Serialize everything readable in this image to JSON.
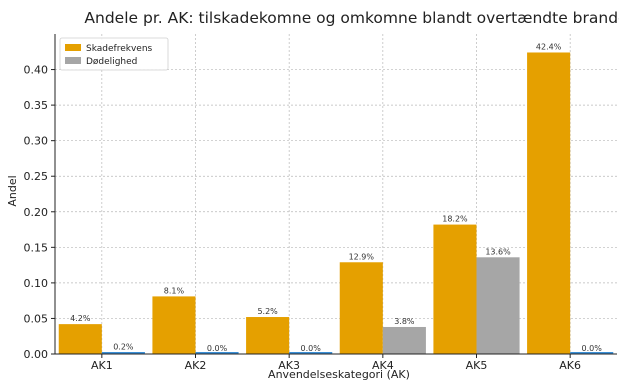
{
  "chart_data": {
    "type": "bar",
    "title": "Andele pr. AK: tilskadekomne og omkomne blandt overtændte brande",
    "xlabel": "Anvendelseskategori (AK)",
    "ylabel": "Andel",
    "categories": [
      "AK1",
      "AK2",
      "AK3",
      "AK4",
      "AK5",
      "AK6"
    ],
    "ylim": [
      0,
      0.45
    ],
    "yticks": [
      0.0,
      0.05,
      0.1,
      0.15,
      0.2,
      0.25,
      0.3,
      0.35,
      0.4
    ],
    "ytick_labels": [
      "0.00",
      "0.05",
      "0.10",
      "0.15",
      "0.20",
      "0.25",
      "0.30",
      "0.35",
      "0.40"
    ],
    "grid": true,
    "legend_position": "top-left",
    "series": [
      {
        "name": "Skadefrekvens",
        "color": "#E5A000",
        "values": [
          0.042,
          0.081,
          0.052,
          0.129,
          0.182,
          0.424
        ],
        "labels": [
          "4.2%",
          "8.1%",
          "5.2%",
          "12.9%",
          "18.2%",
          "42.4%"
        ]
      },
      {
        "name": "Dødelighed",
        "color": "#A6A6A6",
        "edge_color": "#3A8FD6",
        "values": [
          0.002,
          0.0,
          0.0,
          0.038,
          0.136,
          0.0
        ],
        "labels": [
          "0.2%",
          "0.0%",
          "0.0%",
          "3.8%",
          "13.6%",
          "0.0%"
        ]
      }
    ]
  }
}
